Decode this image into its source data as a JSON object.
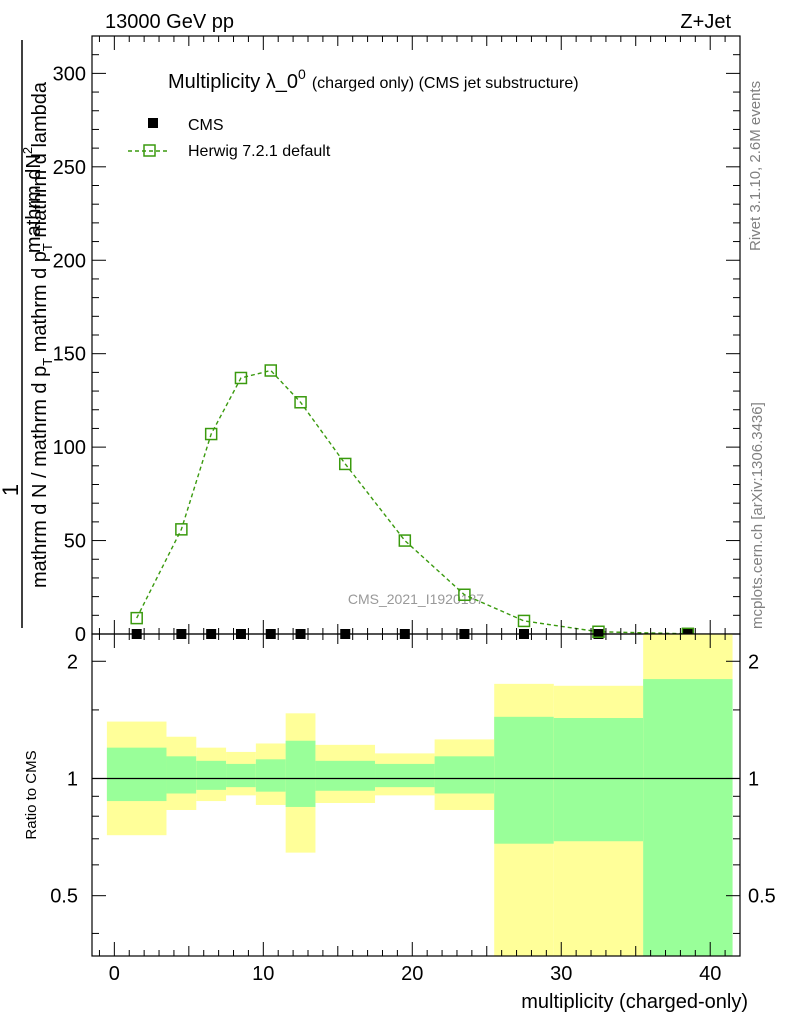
{
  "header": {
    "energy_label": "13000 GeV pp",
    "process_label": "Z+Jet"
  },
  "side_labels": {
    "rivet": "Rivet 3.1.10,  2.6M events",
    "mcplots": "mcplots.cern.ch [arXiv:1306.3436]"
  },
  "watermark": "CMS_2021_I1920187",
  "chart_data": [
    {
      "type": "scatter",
      "title": "Multiplicity λ_0",
      "title_superscript": "0",
      "title_suffix": "(charged only) (CMS jet substructure)",
      "ylabel_numerator": "mathrm dN",
      "ylabel_numerator_sup": "2",
      "ylabel_denominator": "mathrm d N / mathrm d p",
      "ylabel_denominator_sub": "T",
      "ylabel_denominator_tail": "mathrm d p",
      "ylabel_denominator_tail_sub": "T",
      "ylabel_denominator_end": "mathrm d lambda",
      "ylabel_one": "1",
      "xlim": [
        -1.5,
        42
      ],
      "ylim": [
        0,
        320
      ],
      "y_ticks": [
        0,
        50,
        100,
        150,
        200,
        250,
        300
      ],
      "y_tick_labels": [
        "0",
        "50",
        "100",
        "150",
        "200",
        "250",
        "300"
      ],
      "legend_position": "top-left",
      "series": [
        {
          "name": "CMS",
          "marker": "filled-square",
          "color": "#000000",
          "x": [
            1.5,
            4.5,
            6.5,
            8.5,
            10.5,
            12.5,
            15.5,
            19.5,
            23.5,
            27.5,
            32.5,
            38.5
          ],
          "values": [
            0,
            0,
            0,
            0,
            0,
            0,
            0,
            0,
            0,
            0,
            0,
            0
          ]
        },
        {
          "name": "Herwig 7.2.1 default",
          "marker": "open-square",
          "line": "dashed",
          "color": "#3a9a0e",
          "x": [
            1.5,
            4.5,
            6.5,
            8.5,
            10.5,
            12.5,
            15.5,
            19.5,
            23.5,
            27.5,
            32.5,
            38.5
          ],
          "values": [
            8.5,
            56,
            107,
            137,
            141,
            124,
            91,
            50,
            21,
            7,
            1.2,
            0.1
          ]
        }
      ]
    },
    {
      "type": "area",
      "ylabel": "Ratio to CMS",
      "xlabel": "multiplicity (charged-only)",
      "xlim": [
        -1.5,
        42
      ],
      "ylim": [
        0.35,
        2.35
      ],
      "y_scale": "log",
      "y_ticks": [
        0.5,
        1,
        2
      ],
      "y_tick_labels": [
        "0.5",
        "1",
        "2"
      ],
      "x_ticks": [
        0,
        10,
        20,
        30,
        40
      ],
      "x_tick_labels": [
        "0",
        "10",
        "20",
        "30",
        "40"
      ],
      "reference_line": 1,
      "bands": {
        "colors": {
          "stat": "#99ff99",
          "total": "#ffff99"
        },
        "bins": [
          {
            "lo": -0.5,
            "hi": 3.5,
            "stat": [
              0.875,
              1.2
            ],
            "total": [
              0.715,
              1.4
            ]
          },
          {
            "lo": 3.5,
            "hi": 5.5,
            "stat": [
              0.915,
              1.14
            ],
            "total": [
              0.83,
              1.28
            ]
          },
          {
            "lo": 5.5,
            "hi": 7.5,
            "stat": [
              0.935,
              1.11
            ],
            "total": [
              0.875,
              1.2
            ]
          },
          {
            "lo": 7.5,
            "hi": 9.5,
            "stat": [
              0.95,
              1.09
            ],
            "total": [
              0.905,
              1.17
            ]
          },
          {
            "lo": 9.5,
            "hi": 11.5,
            "stat": [
              0.925,
              1.12
            ],
            "total": [
              0.855,
              1.23
            ]
          },
          {
            "lo": 11.5,
            "hi": 13.5,
            "stat": [
              0.845,
              1.25
            ],
            "total": [
              0.645,
              1.47
            ]
          },
          {
            "lo": 13.5,
            "hi": 17.5,
            "stat": [
              0.93,
              1.11
            ],
            "total": [
              0.865,
              1.22
            ]
          },
          {
            "lo": 17.5,
            "hi": 21.5,
            "stat": [
              0.95,
              1.09
            ],
            "total": [
              0.905,
              1.16
            ]
          },
          {
            "lo": 21.5,
            "hi": 25.5,
            "stat": [
              0.915,
              1.14
            ],
            "total": [
              0.83,
              1.26
            ]
          },
          {
            "lo": 25.5,
            "hi": 29.5,
            "stat": [
              0.68,
              1.44
            ],
            "total": [
              0.35,
              1.75
            ]
          },
          {
            "lo": 29.5,
            "hi": 35.5,
            "stat": [
              0.69,
              1.43
            ],
            "total": [
              0.35,
              1.73
            ]
          },
          {
            "lo": 35.5,
            "hi": 41.5,
            "stat": [
              0.35,
              1.8
            ],
            "total": [
              0.35,
              2.35
            ]
          }
        ]
      }
    }
  ]
}
